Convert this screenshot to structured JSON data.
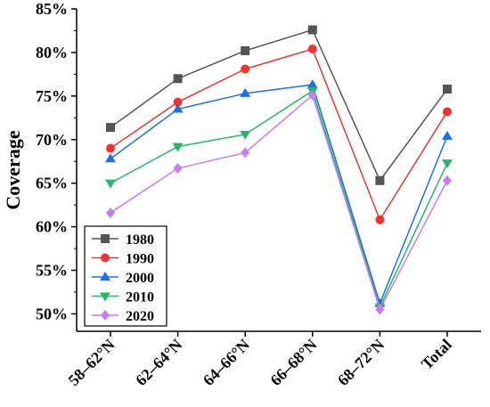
{
  "chart_data": {
    "type": "line",
    "title": "",
    "xlabel": "",
    "ylabel": "Coverage",
    "categories": [
      "58–62°N",
      "62–64°N",
      "64–66°N",
      "66–68°N",
      "68–72°N",
      "Total"
    ],
    "ylim": [
      48,
      85
    ],
    "yticks": [
      50,
      55,
      60,
      65,
      70,
      75,
      80,
      85
    ],
    "ytick_labels": [
      "50%",
      "55%",
      "60%",
      "65%",
      "70%",
      "75%",
      "80%",
      "85%"
    ],
    "grid": false,
    "legend_position": "bottom-left",
    "series": [
      {
        "name": "1980",
        "color": "#555555",
        "marker": "square",
        "values": [
          71.4,
          77.0,
          80.2,
          82.6,
          65.3,
          75.8
        ]
      },
      {
        "name": "1990",
        "color": "#ee3333",
        "marker": "circle",
        "values": [
          69.0,
          74.3,
          78.1,
          80.4,
          60.8,
          73.2
        ]
      },
      {
        "name": "2000",
        "color": "#1e6ee8",
        "marker": "triangle-up",
        "values": [
          67.8,
          73.5,
          75.3,
          76.3,
          51.2,
          70.4
        ]
      },
      {
        "name": "2010",
        "color": "#2db36b",
        "marker": "triangle-down",
        "values": [
          65.0,
          69.2,
          70.6,
          75.6,
          50.8,
          67.3
        ]
      },
      {
        "name": "2020",
        "color": "#c77ee6",
        "marker": "diamond",
        "values": [
          61.6,
          66.7,
          68.5,
          75.1,
          50.5,
          65.3
        ]
      }
    ]
  }
}
